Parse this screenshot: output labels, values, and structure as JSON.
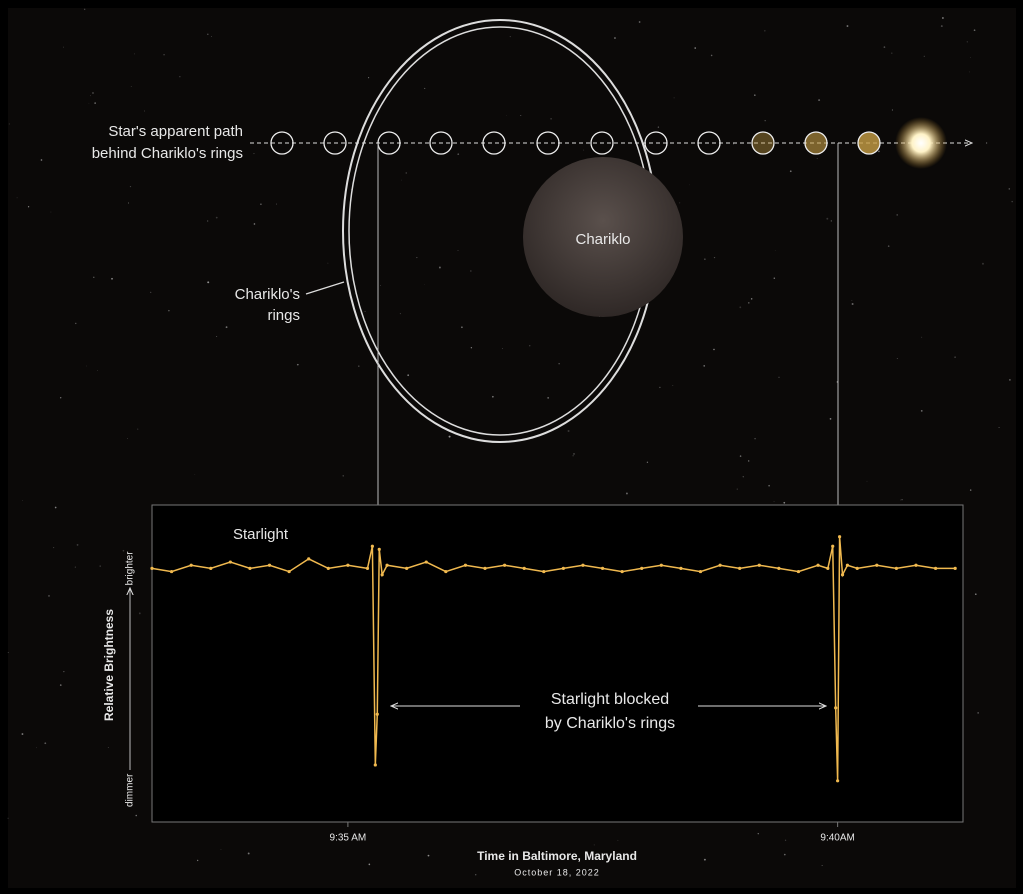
{
  "illustration": {
    "path_label": [
      "Star's apparent path",
      "behind Chariklo's rings"
    ],
    "rings_label": [
      "Chariklo's",
      "rings"
    ],
    "body_label": "Chariklo"
  },
  "chart_data": {
    "type": "line",
    "x": [
      573.0,
      573.2,
      573.4,
      573.6,
      573.8,
      574.0,
      574.2,
      574.4,
      574.6,
      574.8,
      575.0,
      575.2,
      575.25,
      575.28,
      575.3,
      575.32,
      575.35,
      575.4,
      575.6,
      575.8,
      576.0,
      576.2,
      576.4,
      576.6,
      576.8,
      577.0,
      577.2,
      577.4,
      577.6,
      577.8,
      578.0,
      578.2,
      578.4,
      578.6,
      578.8,
      579.0,
      579.2,
      579.4,
      579.6,
      579.8,
      579.9,
      579.95,
      579.98,
      580.0,
      580.02,
      580.05,
      580.1,
      580.2,
      580.4,
      580.6,
      580.8,
      581.0,
      581.2
    ],
    "series": [
      {
        "name": "Starlight",
        "color": "#f0b94f",
        "values": [
          0.8,
          0.79,
          0.81,
          0.8,
          0.82,
          0.8,
          0.81,
          0.79,
          0.83,
          0.8,
          0.81,
          0.8,
          0.87,
          0.18,
          0.34,
          0.86,
          0.78,
          0.81,
          0.8,
          0.82,
          0.79,
          0.81,
          0.8,
          0.81,
          0.8,
          0.79,
          0.8,
          0.81,
          0.8,
          0.79,
          0.8,
          0.81,
          0.8,
          0.79,
          0.81,
          0.8,
          0.81,
          0.8,
          0.79,
          0.81,
          0.8,
          0.87,
          0.36,
          0.13,
          0.9,
          0.78,
          0.81,
          0.8,
          0.81,
          0.8,
          0.81,
          0.8,
          0.8
        ]
      }
    ],
    "annotations": [
      "Starlight blocked",
      "by Chariklo's rings"
    ],
    "xlabel": "Time in Baltimore, Maryland",
    "xlabel_sub": "October 18, 2022",
    "ylabel": "Relative Brightness",
    "xlim": [
      573.0,
      581.28
    ],
    "xticks": [
      {
        "value": 575,
        "label": "9:35 AM"
      },
      {
        "value": 580,
        "label": "9:40AM"
      }
    ],
    "ylim": [
      0,
      1
    ],
    "yticks": [
      {
        "value": 0.8,
        "label": "brighter"
      },
      {
        "value": 0.1,
        "label": "dimmer"
      }
    ]
  }
}
